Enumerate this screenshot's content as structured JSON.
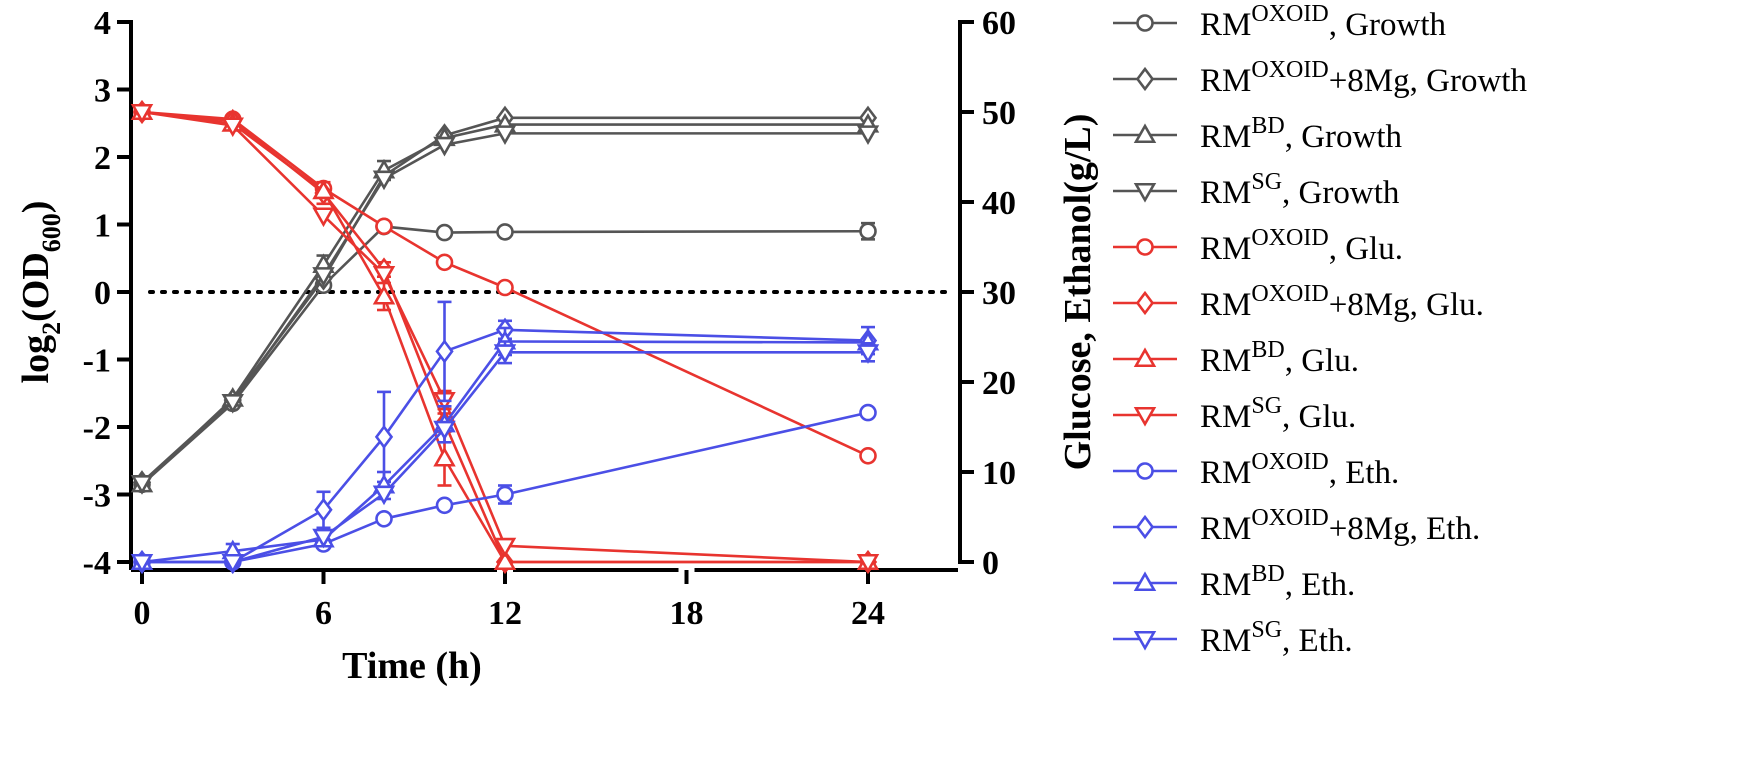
{
  "chart_data": {
    "type": "line",
    "x": [
      0,
      3,
      6,
      8,
      10,
      12,
      24
    ],
    "x_axis": {
      "label": "Time (h)",
      "tick_values": [
        0,
        6,
        12,
        18,
        24
      ],
      "tick_labels": [
        "0",
        "6",
        "12",
        "18",
        "24"
      ],
      "segments": [
        [
          0,
          12
        ],
        [
          12,
          18
        ],
        [
          18,
          24
        ]
      ]
    },
    "y_left": {
      "label_main": "log",
      "label_sub": "2",
      "label_mid": "(OD",
      "label_sub2": "600",
      "label_end": ")",
      "ylim": [
        -4,
        4
      ],
      "ticks": [
        -4,
        -3,
        -2,
        -1,
        0,
        1,
        2,
        3,
        4
      ],
      "tick_labels": [
        "-4",
        "-3",
        "-2",
        "-1",
        "0",
        "1",
        "2",
        "3",
        "4"
      ]
    },
    "y_right": {
      "label": "Glucose, Ethanol(g/L)",
      "ylim": [
        0,
        60
      ],
      "ticks": [
        0,
        10,
        20,
        30,
        40,
        50,
        60
      ],
      "tick_labels": [
        "0",
        "10",
        "20",
        "30",
        "40",
        "50",
        "60"
      ]
    },
    "reference_line": {
      "axis": "left",
      "y": 0,
      "style": "dotted"
    },
    "colors": {
      "growth": "#555555",
      "glucose": "#e8342f",
      "ethanol": "#4b4fe6"
    },
    "series": [
      {
        "name": "RM^OXOID, Growth",
        "base": "RM",
        "sup": "OXOID",
        "suffix": ", Growth",
        "group": "growth",
        "axis": "left",
        "marker": "circle",
        "values": [
          -2.85,
          -1.65,
          0.1,
          0.97,
          0.88,
          0.89,
          0.9
        ],
        "errors": [
          0,
          0,
          0,
          0,
          0,
          0,
          0.12
        ]
      },
      {
        "name": "RM^OXOID+8Mg, Growth",
        "base": "RM",
        "sup": "OXOID",
        "suffix": "+8Mg, Growth",
        "group": "growth",
        "axis": "left",
        "marker": "diamond",
        "values": [
          -2.82,
          -1.6,
          0.2,
          1.72,
          2.32,
          2.58,
          2.58
        ],
        "errors": [
          0,
          0,
          0,
          0,
          0,
          0,
          0
        ]
      },
      {
        "name": "RM^BD, Growth",
        "base": "RM",
        "sup": "BD",
        "suffix": ", Growth",
        "group": "growth",
        "axis": "left",
        "marker": "triangle-up",
        "values": [
          -2.85,
          -1.58,
          0.4,
          1.8,
          2.28,
          2.48,
          2.48
        ],
        "errors": [
          0,
          0,
          0.14,
          0.14,
          0,
          0,
          0
        ]
      },
      {
        "name": "RM^SG, Growth",
        "base": "RM",
        "sup": "SG",
        "suffix": ", Growth",
        "group": "growth",
        "axis": "left",
        "marker": "triangle-down",
        "values": [
          -2.83,
          -1.63,
          0.25,
          1.68,
          2.18,
          2.35,
          2.35
        ],
        "errors": [
          0,
          0,
          0,
          0,
          0,
          0,
          0
        ]
      },
      {
        "name": "RM^OXOID, Glu.",
        "base": "RM",
        "sup": "OXOID",
        "suffix": ", Glu.",
        "group": "glucose",
        "axis": "right",
        "marker": "circle",
        "values": [
          50,
          49.2,
          41.5,
          37.3,
          33.3,
          30.5,
          11.8
        ],
        "errors": [
          0,
          0,
          0,
          0,
          0,
          0,
          0
        ]
      },
      {
        "name": "RM^OXOID+8Mg, Glu.",
        "base": "RM",
        "sup": "OXOID",
        "suffix": "+8Mg, Glu.",
        "group": "glucose",
        "axis": "right",
        "marker": "diamond",
        "values": [
          50,
          49.0,
          41.0,
          32.5,
          15.5,
          0,
          0
        ],
        "errors": [
          0,
          0,
          1.2,
          0.8,
          1.0,
          0,
          0
        ]
      },
      {
        "name": "RM^BD, Glu.",
        "base": "RM",
        "sup": "BD",
        "suffix": ", Glu.",
        "group": "glucose",
        "axis": "right",
        "marker": "triangle-up",
        "values": [
          50,
          48.7,
          41.2,
          29.5,
          11.5,
          0,
          0
        ],
        "errors": [
          0,
          0,
          0,
          1.5,
          3.0,
          0,
          0
        ]
      },
      {
        "name": "RM^SG, Glu.",
        "base": "RM",
        "sup": "SG",
        "suffix": ", Glu.",
        "group": "glucose",
        "axis": "right",
        "marker": "triangle-down",
        "values": [
          50,
          48.5,
          38.5,
          32.0,
          18.0,
          1.8,
          0
        ],
        "errors": [
          0,
          0,
          0,
          0,
          1.0,
          0,
          0
        ]
      },
      {
        "name": "RM^OXOID, Eth.",
        "base": "RM",
        "sup": "OXOID",
        "suffix": ", Eth.",
        "group": "ethanol",
        "axis": "right",
        "marker": "circle",
        "values": [
          0,
          0,
          2.0,
          4.8,
          6.3,
          7.5,
          16.6
        ],
        "errors": [
          0,
          0,
          0,
          0,
          0,
          1.0,
          0
        ]
      },
      {
        "name": "RM^OXOID+8Mg, Eth.",
        "base": "RM",
        "sup": "OXOID",
        "suffix": "+8Mg, Eth.",
        "group": "ethanol",
        "axis": "right",
        "marker": "diamond",
        "values": [
          0,
          0,
          5.8,
          13.9,
          23.4,
          25.8,
          24.6
        ],
        "errors": [
          0,
          0,
          2.0,
          5.0,
          5.5,
          1.0,
          1.5
        ]
      },
      {
        "name": "RM^BD, Eth.",
        "base": "RM",
        "sup": "BD",
        "suffix": ", Eth.",
        "group": "ethanol",
        "axis": "right",
        "marker": "triangle-up",
        "values": [
          0,
          1.2,
          2.5,
          8.5,
          15.3,
          24.5,
          24.4
        ],
        "errors": [
          0,
          0.8,
          0,
          1.5,
          2.0,
          1.5,
          0
        ]
      },
      {
        "name": "RM^SG, Eth.",
        "base": "RM",
        "sup": "SG",
        "suffix": ", Eth.",
        "group": "ethanol",
        "axis": "right",
        "marker": "triangle-down",
        "values": [
          0,
          0,
          2.8,
          7.6,
          14.8,
          23.3,
          23.3
        ],
        "errors": [
          0,
          0,
          0,
          0,
          0,
          1.2,
          1.0
        ]
      }
    ]
  }
}
